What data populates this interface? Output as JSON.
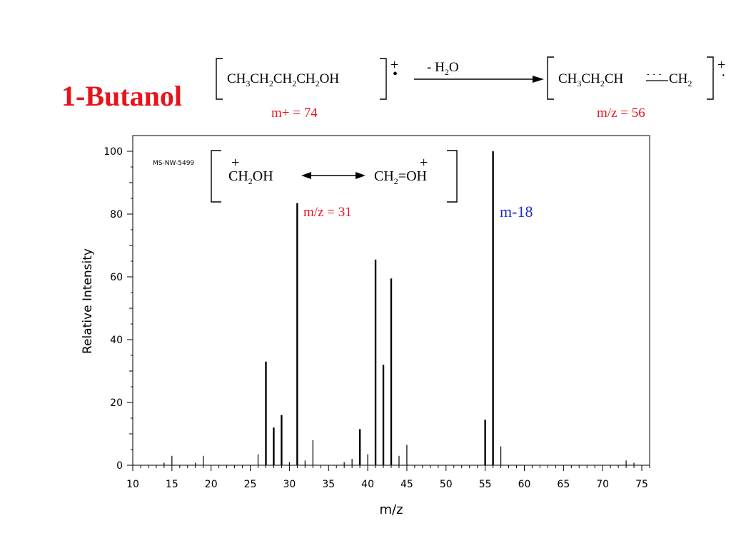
{
  "slide": {
    "title": "1-Butanol",
    "title_color": "#e8141b",
    "accent_red": "#e8141b",
    "accent_blue": "#1f2ccc"
  },
  "reaction": {
    "reactant": {
      "parts": [
        "CH",
        "3",
        "CH",
        "2",
        "CH",
        "2",
        "CH",
        "2",
        "OH"
      ],
      "charge": "+",
      "radical": "•"
    },
    "reagent": {
      "prefix": "- H",
      "sub": "2",
      "suffix": "O"
    },
    "product": {
      "parts": [
        "CH",
        "3",
        "CH",
        "2",
        "CH",
        "- - -",
        "CH",
        "2"
      ],
      "charge": "+",
      "radical": "·"
    },
    "reactant_label": "m+ = 74",
    "product_label": "m/z = 56"
  },
  "inset": {
    "left": {
      "charge": "+",
      "a": "CH",
      "sub": "2",
      "b": "OH"
    },
    "right": {
      "charge": "+",
      "a": "CH",
      "sub": "2",
      "b": "=OH"
    },
    "label": "m/z = 31"
  },
  "annotation_m18": "m-18",
  "chart_data": {
    "type": "bar",
    "code": "MS-NW-5499",
    "xlabel": "m/z",
    "ylabel": "Relative Intensity",
    "xlim": [
      10,
      76
    ],
    "ylim": [
      0,
      100
    ],
    "xticks": [
      10,
      15,
      20,
      25,
      30,
      35,
      40,
      45,
      50,
      55,
      60,
      65,
      70,
      75
    ],
    "yticks": [
      0,
      20,
      40,
      60,
      80,
      100
    ],
    "peaks": [
      {
        "x": 14,
        "y": 0.8
      },
      {
        "x": 15,
        "y": 3
      },
      {
        "x": 18,
        "y": 0.8
      },
      {
        "x": 19,
        "y": 3
      },
      {
        "x": 26,
        "y": 3.5
      },
      {
        "x": 27,
        "y": 33
      },
      {
        "x": 28,
        "y": 12
      },
      {
        "x": 29,
        "y": 16
      },
      {
        "x": 30,
        "y": 1
      },
      {
        "x": 31,
        "y": 83.5
      },
      {
        "x": 32,
        "y": 1.5
      },
      {
        "x": 33,
        "y": 8
      },
      {
        "x": 37,
        "y": 1
      },
      {
        "x": 38,
        "y": 2
      },
      {
        "x": 39,
        "y": 11.5
      },
      {
        "x": 40,
        "y": 3.5
      },
      {
        "x": 41,
        "y": 65.5
      },
      {
        "x": 42,
        "y": 32
      },
      {
        "x": 43,
        "y": 59.5
      },
      {
        "x": 44,
        "y": 3
      },
      {
        "x": 45,
        "y": 6.5
      },
      {
        "x": 55,
        "y": 14.5
      },
      {
        "x": 56,
        "y": 100
      },
      {
        "x": 57,
        "y": 6
      },
      {
        "x": 73,
        "y": 1.5
      },
      {
        "x": 74,
        "y": 0.8
      }
    ]
  }
}
